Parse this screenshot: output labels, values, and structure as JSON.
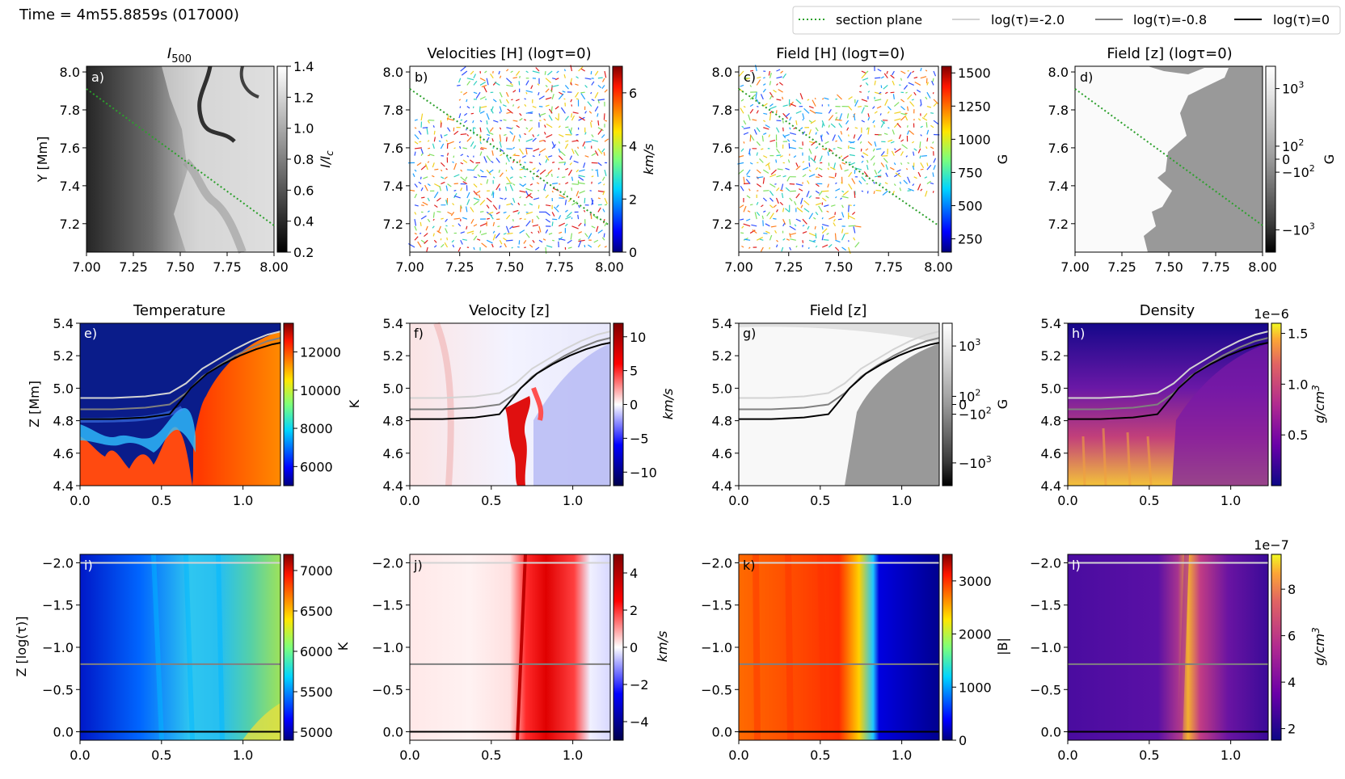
{
  "figure": {
    "time_label": "Time = 4m55.8859s (017000)",
    "legend": [
      {
        "label": "section plane",
        "style": "dotted",
        "color": "#2ca02c"
      },
      {
        "label": "log(τ)=-2.0",
        "style": "solid",
        "color": "#d3d3d3"
      },
      {
        "label": "log(τ)=-0.8",
        "style": "solid",
        "color": "#808080"
      },
      {
        "label": "log(τ)=0",
        "style": "solid",
        "color": "#000000"
      }
    ]
  },
  "chart_data": [
    {
      "id": "a",
      "type": "heatmap",
      "panel_label": "a)",
      "title": "I500",
      "title_main": "I",
      "title_sub": "500",
      "xlabel": "",
      "ylabel": "Y [Mm]",
      "xlim": [
        7.0,
        8.0
      ],
      "ylim": [
        7.05,
        8.03
      ],
      "xticks": [
        "7.00",
        "7.25",
        "7.50",
        "7.75",
        "8.00"
      ],
      "yticks": [
        "7.2",
        "7.4",
        "7.6",
        "7.8",
        "8.0"
      ],
      "ytick_values": [
        7.2,
        7.4,
        7.6,
        7.8,
        8.0
      ],
      "colorbar": {
        "label": "I/I_c",
        "label_main": "I/I",
        "label_sub": "c",
        "colormap": "gray",
        "range": [
          0.2,
          1.4
        ],
        "ticks": [
          "0.2",
          "0.4",
          "0.6",
          "0.8",
          "1.0",
          "1.2",
          "1.4"
        ]
      },
      "section_line": {
        "x": [
          7.0,
          8.0
        ],
        "y": [
          7.9,
          7.18
        ]
      }
    },
    {
      "id": "b",
      "type": "quiver",
      "panel_label": "b)",
      "title": "Velocities [H] (logτ=0)",
      "xlim": [
        7.0,
        8.0
      ],
      "ylim": [
        7.05,
        8.03
      ],
      "xticks": [
        "7.00",
        "7.25",
        "7.50",
        "7.75",
        "8.00"
      ],
      "yticks": [
        "7.2",
        "7.4",
        "7.6",
        "7.8",
        "8.0"
      ],
      "ytick_values": [
        7.2,
        7.4,
        7.6,
        7.8,
        8.0
      ],
      "colorbar": {
        "label": "km/s",
        "colormap": "jet",
        "range": [
          0,
          7
        ],
        "ticks": [
          "0",
          "2",
          "4",
          "6"
        ],
        "tick_values": [
          0,
          2,
          4,
          6
        ]
      },
      "section_line": {
        "x": [
          7.0,
          8.0
        ],
        "y": [
          7.9,
          7.18
        ]
      }
    },
    {
      "id": "c",
      "type": "quiver",
      "panel_label": "c)",
      "title": "Field [H] (logτ=0)",
      "xlim": [
        7.0,
        8.0
      ],
      "ylim": [
        7.05,
        8.03
      ],
      "xticks": [
        "7.00",
        "7.25",
        "7.50",
        "7.75",
        "8.00"
      ],
      "yticks": [
        "7.2",
        "7.4",
        "7.6",
        "7.8",
        "8.0"
      ],
      "ytick_values": [
        7.2,
        7.4,
        7.6,
        7.8,
        8.0
      ],
      "colorbar": {
        "label": "G",
        "colormap": "jet",
        "range": [
          150,
          1550
        ],
        "ticks": [
          "250",
          "500",
          "750",
          "1000",
          "1250",
          "1500"
        ],
        "tick_values": [
          250,
          500,
          750,
          1000,
          1250,
          1500
        ]
      },
      "section_line": {
        "x": [
          7.0,
          8.0
        ],
        "y": [
          7.9,
          7.18
        ]
      }
    },
    {
      "id": "d",
      "type": "heatmap",
      "panel_label": "d)",
      "title": "Field [z] (logτ=0)",
      "xlim": [
        7.0,
        8.0
      ],
      "ylim": [
        7.05,
        8.03
      ],
      "xticks": [
        "7.00",
        "7.25",
        "7.50",
        "7.75",
        "8.00"
      ],
      "yticks": [
        "7.2",
        "7.4",
        "7.6",
        "7.8",
        "8.0"
      ],
      "ytick_values": [
        7.2,
        7.4,
        7.6,
        7.8,
        8.0
      ],
      "colorbar": {
        "label": "G",
        "colormap": "gray symlog",
        "ticks": [
          {
            "base": "10",
            "exp": "3",
            "pos": 0.12
          },
          {
            "base": "10",
            "exp": "2",
            "pos": 0.43
          },
          {
            "base": "0",
            "exp": "",
            "pos": 0.5
          },
          {
            "base": "−10",
            "exp": "2",
            "pos": 0.57
          },
          {
            "base": "−10",
            "exp": "3",
            "pos": 0.88
          }
        ]
      },
      "section_line": {
        "x": [
          7.0,
          8.0
        ],
        "y": [
          7.9,
          7.18
        ]
      }
    },
    {
      "id": "e",
      "type": "heatmap",
      "panel_label": "e)",
      "title": "Temperature",
      "ylabel": "Z [Mm]",
      "xlim": [
        0.0,
        1.23
      ],
      "ylim": [
        4.4,
        5.4
      ],
      "xticks": [
        "0.0",
        "0.5",
        "1.0"
      ],
      "xtick_values": [
        0.0,
        0.5,
        1.0
      ],
      "yticks": [
        "4.4",
        "4.6",
        "4.8",
        "5.0",
        "5.2",
        "5.4"
      ],
      "ytick_values": [
        4.4,
        4.6,
        4.8,
        5.0,
        5.2,
        5.4
      ],
      "colorbar": {
        "label": "K",
        "colormap": "jet",
        "range": [
          5000,
          13500
        ],
        "ticks": [
          "6000",
          "8000",
          "10000",
          "12000"
        ],
        "tick_values": [
          6000,
          8000,
          10000,
          12000
        ]
      },
      "tau_contours": [
        {
          "name": "log(τ)=-2.0",
          "color": "#d3d3d3",
          "x": [
            0.0,
            0.2,
            0.4,
            0.55,
            0.65,
            0.75,
            0.85,
            0.95,
            1.05,
            1.15,
            1.23
          ],
          "y": [
            4.94,
            4.94,
            4.95,
            4.97,
            5.03,
            5.12,
            5.18,
            5.24,
            5.29,
            5.33,
            5.35
          ]
        },
        {
          "name": "log(τ)=-0.8",
          "color": "#808080",
          "x": [
            0.0,
            0.2,
            0.4,
            0.55,
            0.65,
            0.75,
            0.85,
            0.95,
            1.05,
            1.15,
            1.23
          ],
          "y": [
            4.87,
            4.87,
            4.88,
            4.9,
            4.97,
            5.07,
            5.14,
            5.2,
            5.25,
            5.29,
            5.31
          ]
        },
        {
          "name": "log(τ)=0",
          "color": "#000000",
          "x": [
            0.0,
            0.2,
            0.4,
            0.55,
            0.6,
            0.68,
            0.78,
            0.88,
            0.98,
            1.08,
            1.18,
            1.23
          ],
          "y": [
            4.81,
            4.81,
            4.82,
            4.84,
            4.9,
            5.0,
            5.09,
            5.15,
            5.2,
            5.24,
            5.27,
            5.28
          ]
        }
      ]
    },
    {
      "id": "f",
      "type": "heatmap",
      "panel_label": "f)",
      "title": "Velocity [z]",
      "xlim": [
        0.0,
        1.23
      ],
      "ylim": [
        4.4,
        5.4
      ],
      "xticks": [
        "0.0",
        "0.5",
        "1.0"
      ],
      "xtick_values": [
        0.0,
        0.5,
        1.0
      ],
      "yticks": [
        "4.4",
        "4.6",
        "4.8",
        "5.0",
        "5.2",
        "5.4"
      ],
      "ytick_values": [
        4.4,
        4.6,
        4.8,
        5.0,
        5.2,
        5.4
      ],
      "colorbar": {
        "label": "km/s",
        "colormap": "seismic",
        "range": [
          -12,
          12
        ],
        "ticks": [
          "−10",
          "−5",
          "0",
          "5",
          "10"
        ],
        "tick_values": [
          -10,
          -5,
          0,
          5,
          10
        ]
      }
    },
    {
      "id": "g",
      "type": "heatmap",
      "panel_label": "g)",
      "title": "Field [z]",
      "xlim": [
        0.0,
        1.23
      ],
      "ylim": [
        4.4,
        5.4
      ],
      "xticks": [
        "0.0",
        "0.5",
        "1.0"
      ],
      "xtick_values": [
        0.0,
        0.5,
        1.0
      ],
      "yticks": [
        "4.4",
        "4.6",
        "4.8",
        "5.0",
        "5.2",
        "5.4"
      ],
      "ytick_values": [
        4.4,
        4.6,
        4.8,
        5.0,
        5.2,
        5.4
      ],
      "colorbar": {
        "label": "G",
        "colormap": "gray symlog",
        "ticks": [
          {
            "base": "10",
            "exp": "3",
            "pos": 0.14
          },
          {
            "base": "10",
            "exp": "2",
            "pos": 0.45
          },
          {
            "base": "0",
            "exp": "",
            "pos": 0.5
          },
          {
            "base": "−10",
            "exp": "2",
            "pos": 0.56
          },
          {
            "base": "−10",
            "exp": "3",
            "pos": 0.86
          }
        ]
      }
    },
    {
      "id": "h",
      "type": "heatmap",
      "panel_label": "h)",
      "title": "Density",
      "xlim": [
        0.0,
        1.23
      ],
      "ylim": [
        4.4,
        5.4
      ],
      "xticks": [
        "0.0",
        "0.5",
        "1.0"
      ],
      "xtick_values": [
        0.0,
        0.5,
        1.0
      ],
      "yticks": [
        "4.4",
        "4.6",
        "4.8",
        "5.0",
        "5.2",
        "5.4"
      ],
      "ytick_values": [
        4.4,
        4.6,
        4.8,
        5.0,
        5.2,
        5.4
      ],
      "colorbar": {
        "label": "g/cm3",
        "label_main": "g/cm",
        "label_sup": "3",
        "colormap": "plasma",
        "range": [
          0.0,
          1.6
        ],
        "ticks": [
          "0.5",
          "1.0",
          "1.5"
        ],
        "tick_values": [
          0.5,
          1.0,
          1.5
        ],
        "offset": "1e−6"
      }
    },
    {
      "id": "i",
      "type": "heatmap",
      "panel_label": "i)",
      "ylabel": "Z [log(τ)]",
      "xlim": [
        0.0,
        1.23
      ],
      "ylim": [
        0.1,
        -2.1
      ],
      "xticks": [
        "0.0",
        "0.5",
        "1.0"
      ],
      "xtick_values": [
        0.0,
        0.5,
        1.0
      ],
      "yticks": [
        "−2.0",
        "−1.5",
        "−1.0",
        "−0.5",
        "0.0"
      ],
      "ytick_values": [
        -2.0,
        -1.5,
        -1.0,
        -0.5,
        0.0
      ],
      "colorbar": {
        "label": "K",
        "colormap": "jet",
        "range": [
          4900,
          7200
        ],
        "ticks": [
          "5000",
          "5500",
          "6000",
          "6500",
          "7000"
        ],
        "tick_values": [
          5000,
          5500,
          6000,
          6500,
          7000
        ]
      },
      "tau_lines": [
        {
          "value": -2.0,
          "color": "#d3d3d3"
        },
        {
          "value": -0.8,
          "color": "#808080"
        },
        {
          "value": 0.0,
          "color": "#000000"
        }
      ]
    },
    {
      "id": "j",
      "type": "heatmap",
      "panel_label": "j)",
      "xlim": [
        0.0,
        1.23
      ],
      "ylim": [
        0.1,
        -2.1
      ],
      "xticks": [
        "0.0",
        "0.5",
        "1.0"
      ],
      "xtick_values": [
        0.0,
        0.5,
        1.0
      ],
      "yticks": [
        "−2.0",
        "−1.5",
        "−1.0",
        "−0.5",
        "0.0"
      ],
      "ytick_values": [
        -2.0,
        -1.5,
        -1.0,
        -0.5,
        0.0
      ],
      "colorbar": {
        "label": "km/s",
        "colormap": "seismic",
        "range": [
          -5,
          5
        ],
        "ticks": [
          "−4",
          "−2",
          "0",
          "2",
          "4"
        ],
        "tick_values": [
          -4,
          -2,
          0,
          2,
          4
        ]
      },
      "tau_lines": [
        {
          "value": -2.0,
          "color": "#d3d3d3"
        },
        {
          "value": -0.8,
          "color": "#808080"
        },
        {
          "value": 0.0,
          "color": "#000000"
        }
      ]
    },
    {
      "id": "k",
      "type": "heatmap",
      "panel_label": "k)",
      "xlim": [
        0.0,
        1.23
      ],
      "ylim": [
        0.1,
        -2.1
      ],
      "xticks": [
        "0.0",
        "0.5",
        "1.0"
      ],
      "xtick_values": [
        0.0,
        0.5,
        1.0
      ],
      "yticks": [
        "−2.0",
        "−1.5",
        "−1.0",
        "−0.5",
        "0.0"
      ],
      "ytick_values": [
        -2.0,
        -1.5,
        -1.0,
        -0.5,
        0.0
      ],
      "colorbar": {
        "label": "|B|",
        "colormap": "jet",
        "range": [
          0,
          3500
        ],
        "ticks": [
          "0",
          "1000",
          "2000",
          "3000"
        ],
        "tick_values": [
          0,
          1000,
          2000,
          3000
        ]
      },
      "tau_lines": [
        {
          "value": -2.0,
          "color": "#d3d3d3"
        },
        {
          "value": -0.8,
          "color": "#808080"
        },
        {
          "value": 0.0,
          "color": "#000000"
        }
      ]
    },
    {
      "id": "l",
      "type": "heatmap",
      "panel_label": "l)",
      "xlim": [
        0.0,
        1.23
      ],
      "ylim": [
        0.1,
        -2.1
      ],
      "xticks": [
        "0.0",
        "0.5",
        "1.0"
      ],
      "xtick_values": [
        0.0,
        0.5,
        1.0
      ],
      "yticks": [
        "−2.0",
        "−1.5",
        "−1.0",
        "−0.5",
        "0.0"
      ],
      "ytick_values": [
        -2.0,
        -1.5,
        -1.0,
        -0.5,
        0.0
      ],
      "colorbar": {
        "label": "g/cm3",
        "label_main": "g/cm",
        "label_sup": "3",
        "colormap": "plasma",
        "range": [
          1.5,
          9.5
        ],
        "ticks": [
          "2",
          "4",
          "6",
          "8"
        ],
        "tick_values": [
          2,
          4,
          6,
          8
        ],
        "offset": "1e−7"
      },
      "tau_lines": [
        {
          "value": -2.0,
          "color": "#d3d3d3"
        },
        {
          "value": -0.8,
          "color": "#808080"
        },
        {
          "value": 0.0,
          "color": "#000000"
        }
      ]
    }
  ]
}
